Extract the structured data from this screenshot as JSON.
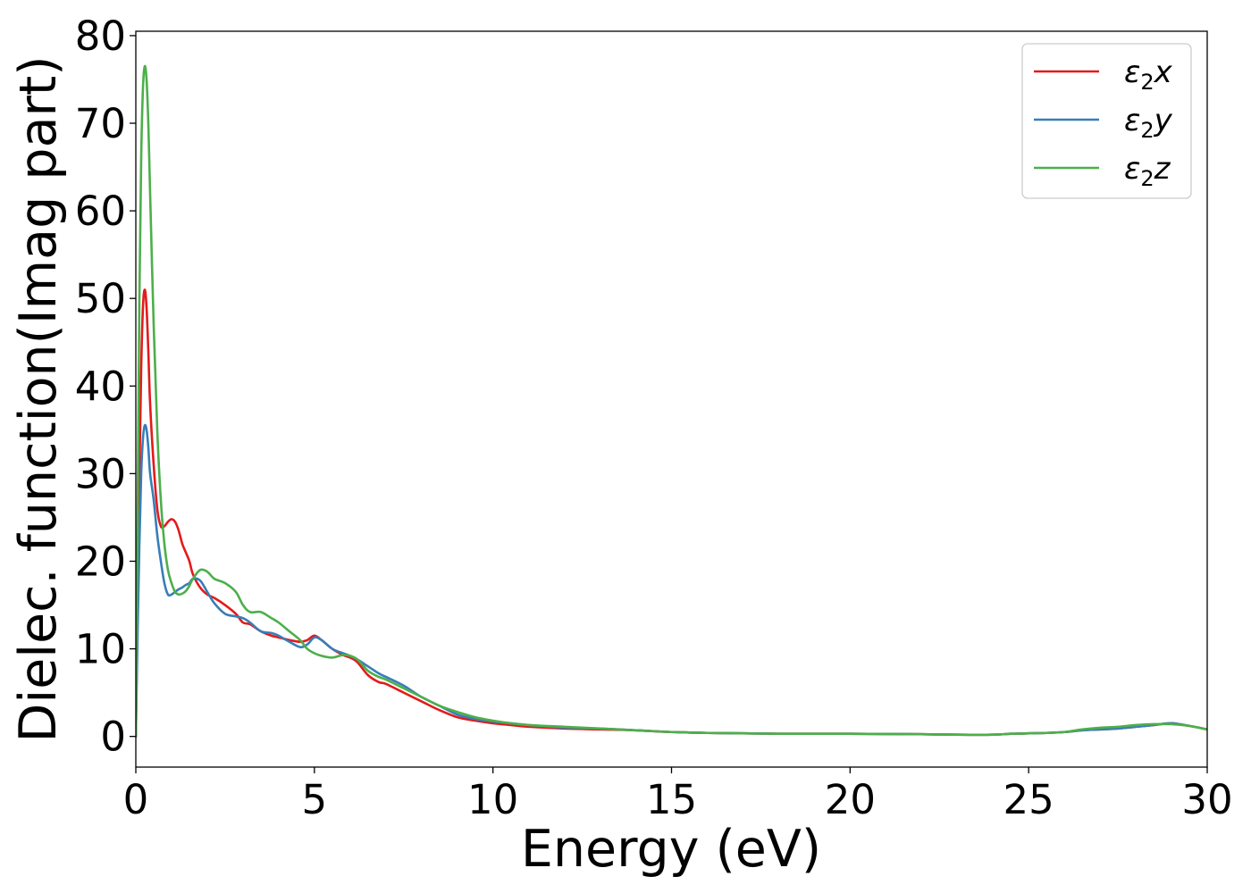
{
  "chart_data": {
    "type": "line",
    "xlabel": "Energy (eV)",
    "ylabel": "Dielec. function(Imag part)",
    "xlim": [
      0,
      30
    ],
    "ylim": [
      -3.5,
      80.5
    ],
    "xticks": [
      0,
      5,
      10,
      15,
      20,
      25,
      30
    ],
    "yticks": [
      0,
      10,
      20,
      30,
      40,
      50,
      60,
      70,
      80
    ],
    "grid": false,
    "legend_position": "top-right",
    "series": [
      {
        "name": "ε₂x",
        "legend_base": "ε",
        "legend_sub": "2",
        "legend_suffix": "x",
        "color": "#e41a1c",
        "x": [
          0,
          0.05,
          0.1,
          0.15,
          0.2,
          0.25,
          0.3,
          0.35,
          0.4,
          0.5,
          0.6,
          0.7,
          0.8,
          0.9,
          1.0,
          1.1,
          1.2,
          1.3,
          1.4,
          1.5,
          1.6,
          1.8,
          2.0,
          2.2,
          2.5,
          2.8,
          3.0,
          3.2,
          3.5,
          3.8,
          4.0,
          4.3,
          4.6,
          4.8,
          5.0,
          5.2,
          5.5,
          5.8,
          6.0,
          6.2,
          6.5,
          6.8,
          7.0,
          7.5,
          8.0,
          8.5,
          9.0,
          9.5,
          10.0,
          10.5,
          11.0,
          12.0,
          13.0,
          14.0,
          15.0,
          16.0,
          17.0,
          18.0,
          19.0,
          20.0,
          21.0,
          22.0,
          23.0,
          24.0,
          24.5,
          25.0,
          25.5,
          26.0,
          26.5,
          27.0,
          27.5,
          28.0,
          28.5,
          29.0,
          29.5,
          30.0
        ],
        "y": [
          0,
          15,
          30,
          42,
          49,
          51,
          49,
          44,
          38,
          31,
          26,
          24,
          24,
          24.5,
          24.8,
          24.5,
          23.5,
          22,
          21,
          20,
          18.5,
          17,
          16.2,
          15.8,
          15,
          14,
          13,
          12.8,
          12,
          11.5,
          11.3,
          11,
          10.8,
          11,
          11.5,
          11,
          10,
          9.3,
          9,
          8.5,
          7,
          6.2,
          6,
          5,
          4,
          3,
          2.2,
          1.8,
          1.5,
          1.3,
          1.1,
          0.9,
          0.8,
          0.7,
          0.5,
          0.4,
          0.35,
          0.3,
          0.3,
          0.3,
          0.28,
          0.25,
          0.2,
          0.2,
          0.3,
          0.35,
          0.4,
          0.5,
          0.7,
          0.8,
          0.9,
          1.1,
          1.3,
          1.5,
          1.2,
          0.8
        ]
      },
      {
        "name": "ε₂y",
        "legend_base": "ε",
        "legend_sub": "2",
        "legend_suffix": "y",
        "color": "#377eb8",
        "x": [
          0,
          0.05,
          0.1,
          0.15,
          0.2,
          0.25,
          0.3,
          0.35,
          0.4,
          0.5,
          0.6,
          0.7,
          0.8,
          0.9,
          1.0,
          1.1,
          1.2,
          1.3,
          1.4,
          1.5,
          1.6,
          1.8,
          2.0,
          2.2,
          2.5,
          2.8,
          3.0,
          3.2,
          3.5,
          3.8,
          4.0,
          4.3,
          4.6,
          4.8,
          5.0,
          5.2,
          5.5,
          5.8,
          6.0,
          6.2,
          6.5,
          6.8,
          7.0,
          7.5,
          8.0,
          8.5,
          9.0,
          9.5,
          10.0,
          10.5,
          11.0,
          12.0,
          13.0,
          14.0,
          15.0,
          16.0,
          17.0,
          18.0,
          19.0,
          20.0,
          21.0,
          22.0,
          23.0,
          24.0,
          24.5,
          25.0,
          25.5,
          26.0,
          26.5,
          27.0,
          27.5,
          28.0,
          28.5,
          29.0,
          29.5,
          30.0
        ],
        "y": [
          0,
          12,
          22,
          30,
          34,
          35.5,
          35,
          33,
          30,
          27,
          23,
          20,
          17.5,
          16.2,
          16.2,
          16.5,
          16.8,
          17,
          17.3,
          17.5,
          18,
          17.8,
          16.5,
          15.2,
          14,
          13.7,
          13.5,
          13,
          12,
          11.8,
          11.5,
          10.8,
          10.2,
          10.5,
          11.3,
          11,
          10,
          9.5,
          9.2,
          8.8,
          8,
          7.2,
          6.8,
          5.8,
          4.5,
          3.5,
          2.5,
          2,
          1.7,
          1.5,
          1.3,
          1.0,
          0.9,
          0.7,
          0.5,
          0.4,
          0.35,
          0.3,
          0.3,
          0.3,
          0.28,
          0.25,
          0.2,
          0.2,
          0.3,
          0.35,
          0.4,
          0.5,
          0.7,
          0.8,
          0.9,
          1.1,
          1.3,
          1.5,
          1.2,
          0.8
        ]
      },
      {
        "name": "ε₂z",
        "legend_base": "ε",
        "legend_sub": "2",
        "legend_suffix": "z",
        "color": "#4daf4a",
        "x": [
          0,
          0.05,
          0.1,
          0.15,
          0.2,
          0.25,
          0.3,
          0.35,
          0.4,
          0.5,
          0.6,
          0.7,
          0.8,
          0.9,
          1.0,
          1.1,
          1.2,
          1.3,
          1.4,
          1.5,
          1.6,
          1.8,
          2.0,
          2.2,
          2.5,
          2.8,
          3.0,
          3.2,
          3.5,
          3.8,
          4.0,
          4.3,
          4.6,
          4.8,
          5.0,
          5.2,
          5.5,
          5.8,
          6.0,
          6.2,
          6.5,
          6.8,
          7.0,
          7.5,
          8.0,
          8.5,
          9.0,
          9.5,
          10.0,
          10.5,
          11.0,
          12.0,
          13.0,
          14.0,
          15.0,
          16.0,
          17.0,
          18.0,
          19.0,
          20.0,
          21.0,
          22.0,
          23.0,
          24.0,
          24.5,
          25.0,
          25.5,
          26.0,
          26.5,
          27.0,
          27.5,
          28.0,
          28.5,
          29.0,
          29.5,
          30.0
        ],
        "y": [
          0,
          25,
          50,
          66,
          74,
          76.5,
          75,
          70,
          62,
          47,
          35,
          27,
          22,
          19,
          17.5,
          16.5,
          16.2,
          16.3,
          16.6,
          17.2,
          18,
          19,
          18.8,
          18,
          17.5,
          16.5,
          15,
          14.2,
          14.2,
          13.5,
          13,
          12,
          11,
          10,
          9.5,
          9.2,
          9,
          9.3,
          9.2,
          8.8,
          7.5,
          6.8,
          6.5,
          5.5,
          4.5,
          3.5,
          2.8,
          2.2,
          1.8,
          1.5,
          1.3,
          1.1,
          0.9,
          0.7,
          0.5,
          0.4,
          0.35,
          0.3,
          0.3,
          0.3,
          0.28,
          0.25,
          0.2,
          0.2,
          0.3,
          0.35,
          0.4,
          0.5,
          0.8,
          1.0,
          1.1,
          1.3,
          1.4,
          1.4,
          1.2,
          0.8
        ]
      }
    ]
  }
}
